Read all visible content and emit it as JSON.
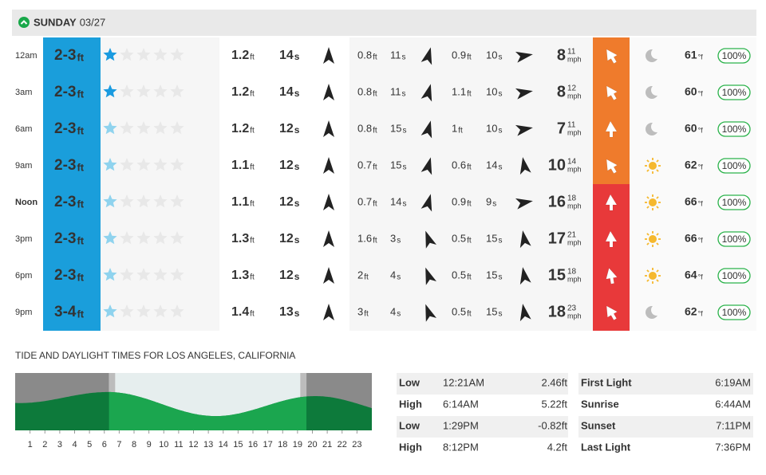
{
  "header": {
    "day": "SUNDAY",
    "date": "03/27"
  },
  "units": {
    "ft": "ft",
    "s": "s",
    "mph": "mph",
    "temp": "°f"
  },
  "rating_max": 5,
  "rows": [
    {
      "time": "12am",
      "surf": "2-3",
      "rating": 1,
      "rating_color": "#1a9be0",
      "swells": [
        {
          "height": 1.2,
          "period": 14,
          "dir": 0
        },
        {
          "height": 0.8,
          "period": 11,
          "dir": 15
        },
        {
          "height": 0.9,
          "period": 10,
          "dir": 80
        }
      ],
      "wind": 8,
      "gust": 11,
      "gust_color": "#333333",
      "wind_dir": -30,
      "wind_color": "#ef7b2c",
      "weather": "moon",
      "temp": 61,
      "prob": "100%"
    },
    {
      "time": "3am",
      "surf": "2-3",
      "rating": 1,
      "rating_color": "#1a9be0",
      "swells": [
        {
          "height": 1.2,
          "period": 14,
          "dir": 0
        },
        {
          "height": 0.8,
          "period": 11,
          "dir": 15
        },
        {
          "height": 1.1,
          "period": 10,
          "dir": 80
        }
      ],
      "wind": 8,
      "gust": 12,
      "gust_color": "#333333",
      "wind_dir": -30,
      "wind_color": "#ef7b2c",
      "weather": "moon",
      "temp": 60,
      "prob": "100%"
    },
    {
      "time": "6am",
      "surf": "2-3",
      "rating": 1,
      "rating_color": "#8fd3ee",
      "swells": [
        {
          "height": 1.2,
          "period": 12,
          "dir": 0
        },
        {
          "height": 0.8,
          "period": 15,
          "dir": 15
        },
        {
          "height": 1,
          "period": 10,
          "dir": 80
        }
      ],
      "wind": 7,
      "gust": 11,
      "gust_color": "#e53935",
      "wind_dir": 0,
      "wind_color": "#ef7b2c",
      "weather": "moon",
      "temp": 60,
      "prob": "100%"
    },
    {
      "time": "9am",
      "surf": "2-3",
      "rating": 1,
      "rating_color": "#8fd3ee",
      "swells": [
        {
          "height": 1.1,
          "period": 12,
          "dir": 0
        },
        {
          "height": 0.7,
          "period": 15,
          "dir": 15
        },
        {
          "height": 0.6,
          "period": 14,
          "dir": -10
        }
      ],
      "wind": 10,
      "gust": 14,
      "gust_color": "#333333",
      "wind_dir": -30,
      "wind_color": "#ef7b2c",
      "weather": "sun",
      "temp": 62,
      "prob": "100%"
    },
    {
      "time": "Noon",
      "highlight": true,
      "surf": "2-3",
      "rating": 1,
      "rating_color": "#8fd3ee",
      "swells": [
        {
          "height": 1.1,
          "period": 12,
          "dir": 0
        },
        {
          "height": 0.7,
          "period": 14,
          "dir": 15
        },
        {
          "height": 0.9,
          "period": 9,
          "dir": 80
        }
      ],
      "wind": 16,
      "gust": 18,
      "gust_color": "#333333",
      "wind_dir": 0,
      "wind_color": "#e8393a",
      "weather": "sun",
      "temp": 66,
      "prob": "100%"
    },
    {
      "time": "3pm",
      "surf": "2-3",
      "rating": 1,
      "rating_color": "#8fd3ee",
      "swells": [
        {
          "height": 1.3,
          "period": 12,
          "dir": 0
        },
        {
          "height": 1.6,
          "period": 3,
          "dir": -20
        },
        {
          "height": 0.5,
          "period": 15,
          "dir": -10
        }
      ],
      "wind": 17,
      "gust": 21,
      "gust_color": "#333333",
      "wind_dir": 0,
      "wind_color": "#e8393a",
      "weather": "sun",
      "temp": 66,
      "prob": "100%"
    },
    {
      "time": "6pm",
      "surf": "2-3",
      "rating": 1,
      "rating_color": "#8fd3ee",
      "swells": [
        {
          "height": 1.3,
          "period": 12,
          "dir": 0
        },
        {
          "height": 2,
          "period": 4,
          "dir": -20
        },
        {
          "height": 0.5,
          "period": 15,
          "dir": -10
        }
      ],
      "wind": 15,
      "gust": 18,
      "gust_color": "#333333",
      "wind_dir": -10,
      "wind_color": "#e8393a",
      "weather": "sun",
      "temp": 64,
      "prob": "100%"
    },
    {
      "time": "9pm",
      "surf": "3-4",
      "rating": 1,
      "rating_color": "#8fd3ee",
      "swells": [
        {
          "height": 1.4,
          "period": 13,
          "dir": 0
        },
        {
          "height": 3,
          "period": 4,
          "dir": -20
        },
        {
          "height": 0.5,
          "period": 15,
          "dir": -10
        }
      ],
      "wind": 18,
      "gust": 23,
      "gust_color": "#333333",
      "wind_dir": -30,
      "wind_color": "#e8393a",
      "weather": "moon",
      "temp": 62,
      "prob": "100%"
    }
  ],
  "tide_title": "TIDE AND DAYLIGHT TIMES FOR LOS ANGELES, CALIFORNIA",
  "tide_chart": {
    "xlim": [
      0,
      24
    ],
    "ylim": [
      -4.4,
      10
    ],
    "xticks": [
      1,
      2,
      3,
      4,
      5,
      6,
      7,
      8,
      9,
      10,
      11,
      12,
      13,
      14,
      15,
      16,
      17,
      18,
      19,
      20,
      21,
      22,
      23
    ]
  },
  "tides": [
    {
      "type": "Low",
      "time": "12:21AM",
      "height": "2.46ft"
    },
    {
      "type": "High",
      "time": "6:14AM",
      "height": "5.22ft"
    },
    {
      "type": "Low",
      "time": "1:29PM",
      "height": "-0.82ft"
    },
    {
      "type": "High",
      "time": "8:12PM",
      "height": "4.2ft"
    }
  ],
  "light": [
    {
      "label": "First Light",
      "time": "6:19AM"
    },
    {
      "label": "Sunrise",
      "time": "6:44AM"
    },
    {
      "label": "Sunset",
      "time": "7:11PM"
    },
    {
      "label": "Last Light",
      "time": "7:36PM"
    }
  ]
}
